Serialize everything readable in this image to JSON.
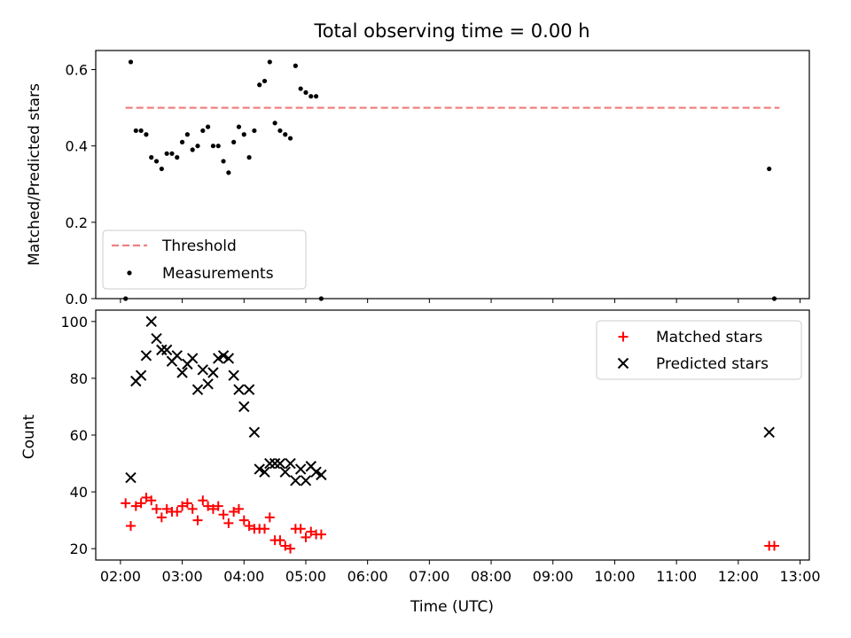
{
  "chart_data": [
    {
      "type": "scatter",
      "title": "Total observing time = 0.00 h",
      "ylabel": "Matched/Predicted stars",
      "ylim": [
        0,
        0.65
      ],
      "yticks": [
        "0.0",
        "0.2",
        "0.4",
        "0.6"
      ],
      "legend_position": "lower-left",
      "threshold": {
        "name": "Threshold",
        "value": 0.5,
        "x_range": [
          "02:05",
          "12:40"
        ],
        "color": "#f08080"
      },
      "series": [
        {
          "name": "Measurements",
          "color": "#000000",
          "marker": "dot",
          "x": [
            "02:05",
            "02:10",
            "02:15",
            "02:20",
            "02:25",
            "02:30",
            "02:35",
            "02:40",
            "02:45",
            "02:50",
            "02:55",
            "03:00",
            "03:05",
            "03:10",
            "03:15",
            "03:20",
            "03:25",
            "03:30",
            "03:35",
            "03:40",
            "03:45",
            "03:50",
            "03:55",
            "04:00",
            "04:05",
            "04:10",
            "04:15",
            "04:20",
            "04:25",
            "04:30",
            "04:35",
            "04:40",
            "04:45",
            "04:50",
            "04:55",
            "05:00",
            "05:05",
            "05:10",
            "05:15",
            "12:30",
            "12:35"
          ],
          "y": [
            0.0,
            0.62,
            0.44,
            0.44,
            0.43,
            0.37,
            0.36,
            0.34,
            0.38,
            0.38,
            0.37,
            0.41,
            0.43,
            0.39,
            0.4,
            0.44,
            0.45,
            0.4,
            0.4,
            0.36,
            0.33,
            0.41,
            0.45,
            0.43,
            0.37,
            0.44,
            0.56,
            0.57,
            0.62,
            0.46,
            0.44,
            0.43,
            0.42,
            0.61,
            0.55,
            0.54,
            0.53,
            0.53,
            0.0,
            0.34,
            0.0
          ]
        }
      ]
    },
    {
      "type": "scatter",
      "xlabel": "Time (UTC)",
      "ylabel": "Count",
      "ylim": [
        16,
        104
      ],
      "yticks": [
        "20",
        "40",
        "60",
        "80",
        "100"
      ],
      "xticks": [
        "02:00",
        "03:00",
        "04:00",
        "05:00",
        "06:00",
        "07:00",
        "08:00",
        "09:00",
        "10:00",
        "11:00",
        "12:00",
        "13:00"
      ],
      "legend_position": "upper-right",
      "series": [
        {
          "name": "Matched stars",
          "color": "#ff0000",
          "marker": "plus",
          "x": [
            "02:05",
            "02:10",
            "02:15",
            "02:20",
            "02:25",
            "02:30",
            "02:35",
            "02:40",
            "02:45",
            "02:50",
            "02:55",
            "03:00",
            "03:05",
            "03:10",
            "03:15",
            "03:20",
            "03:25",
            "03:30",
            "03:35",
            "03:40",
            "03:45",
            "03:50",
            "03:55",
            "04:00",
            "04:05",
            "04:10",
            "04:15",
            "04:20",
            "04:25",
            "04:30",
            "04:35",
            "04:40",
            "04:45",
            "04:50",
            "04:55",
            "05:00",
            "05:05",
            "05:10",
            "05:15",
            "12:30",
            "12:35"
          ],
          "y": [
            36,
            28,
            35,
            36,
            38,
            37,
            34,
            31,
            34,
            33,
            33,
            35,
            36,
            34,
            30,
            37,
            35,
            34,
            35,
            32,
            29,
            33,
            34,
            30,
            28,
            27,
            27,
            27,
            31,
            23,
            23,
            21,
            20,
            27,
            27,
            24,
            26,
            25,
            25,
            21,
            21
          ]
        },
        {
          "name": "Predicted stars",
          "color": "#000000",
          "marker": "x",
          "x": [
            "02:10",
            "02:15",
            "02:20",
            "02:25",
            "02:30",
            "02:35",
            "02:40",
            "02:45",
            "02:50",
            "02:55",
            "03:00",
            "03:05",
            "03:10",
            "03:15",
            "03:20",
            "03:25",
            "03:30",
            "03:35",
            "03:40",
            "03:45",
            "03:50",
            "03:55",
            "04:00",
            "04:05",
            "04:10",
            "04:15",
            "04:20",
            "04:25",
            "04:30",
            "04:35",
            "04:40",
            "04:45",
            "04:50",
            "04:55",
            "05:00",
            "05:05",
            "05:10",
            "05:15",
            "12:30"
          ],
          "y": [
            45,
            79,
            81,
            88,
            100,
            94,
            90,
            90,
            86,
            88,
            82,
            85,
            87,
            76,
            83,
            78,
            82,
            87,
            88,
            87,
            81,
            76,
            70,
            76,
            61,
            48,
            47,
            50,
            50,
            50,
            47,
            50,
            44,
            48,
            44,
            49,
            47,
            46,
            61
          ]
        }
      ]
    }
  ]
}
